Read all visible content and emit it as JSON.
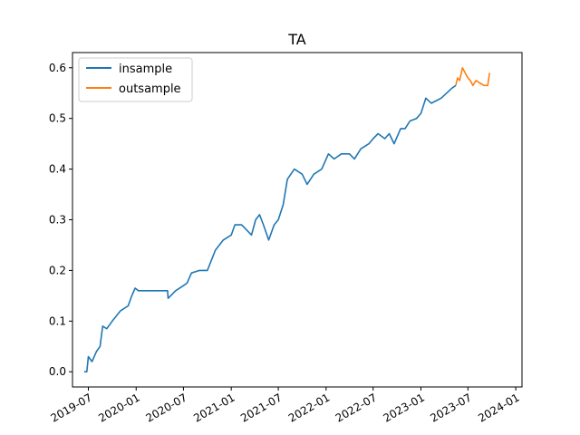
{
  "chart_data": {
    "type": "line",
    "title": "TA",
    "xlabel": "",
    "ylabel": "",
    "xlim": [
      "2019-05-01",
      "2024-01-25"
    ],
    "ylim": [
      -0.03,
      0.63
    ],
    "x_ticks": [
      "2019-07",
      "2020-01",
      "2020-07",
      "2021-01",
      "2021-07",
      "2022-01",
      "2022-07",
      "2023-01",
      "2023-07",
      "2024-01"
    ],
    "y_ticks": [
      "0.0",
      "0.1",
      "0.2",
      "0.3",
      "0.4",
      "0.5",
      "0.6"
    ],
    "grid": false,
    "legend": {
      "position": "top-left",
      "entries": [
        "insample",
        "outsample"
      ]
    },
    "colors": {
      "insample": "#1f77b4",
      "outsample": "#ff7f0e"
    },
    "series": [
      {
        "name": "insample",
        "points": [
          [
            "2019-06-15",
            0.0
          ],
          [
            "2019-06-25",
            0.0
          ],
          [
            "2019-07-01",
            0.03
          ],
          [
            "2019-07-15",
            0.02
          ],
          [
            "2019-08-01",
            0.04
          ],
          [
            "2019-08-15",
            0.05
          ],
          [
            "2019-08-25",
            0.09
          ],
          [
            "2019-09-10",
            0.085
          ],
          [
            "2019-10-01",
            0.1
          ],
          [
            "2019-11-01",
            0.12
          ],
          [
            "2019-12-01",
            0.13
          ],
          [
            "2019-12-15",
            0.15
          ],
          [
            "2019-12-28",
            0.165
          ],
          [
            "2020-01-10",
            0.16
          ],
          [
            "2020-03-01",
            0.16
          ],
          [
            "2020-05-01",
            0.16
          ],
          [
            "2020-05-03",
            0.145
          ],
          [
            "2020-06-01",
            0.16
          ],
          [
            "2020-07-01",
            0.17
          ],
          [
            "2020-07-15",
            0.175
          ],
          [
            "2020-08-01",
            0.195
          ],
          [
            "2020-09-01",
            0.2
          ],
          [
            "2020-10-01",
            0.2
          ],
          [
            "2020-11-01",
            0.24
          ],
          [
            "2020-12-01",
            0.26
          ],
          [
            "2021-01-01",
            0.27
          ],
          [
            "2021-01-15",
            0.29
          ],
          [
            "2021-02-10",
            0.29
          ],
          [
            "2021-03-01",
            0.28
          ],
          [
            "2021-03-20",
            0.27
          ],
          [
            "2021-04-05",
            0.3
          ],
          [
            "2021-04-20",
            0.31
          ],
          [
            "2021-05-05",
            0.29
          ],
          [
            "2021-05-25",
            0.26
          ],
          [
            "2021-06-15",
            0.29
          ],
          [
            "2021-07-01",
            0.3
          ],
          [
            "2021-07-20",
            0.33
          ],
          [
            "2021-08-05",
            0.38
          ],
          [
            "2021-09-01",
            0.4
          ],
          [
            "2021-10-01",
            0.39
          ],
          [
            "2021-10-20",
            0.37
          ],
          [
            "2021-11-15",
            0.39
          ],
          [
            "2021-12-15",
            0.4
          ],
          [
            "2022-01-10",
            0.43
          ],
          [
            "2022-02-01",
            0.42
          ],
          [
            "2022-03-01",
            0.43
          ],
          [
            "2022-04-01",
            0.43
          ],
          [
            "2022-04-20",
            0.42
          ],
          [
            "2022-05-15",
            0.44
          ],
          [
            "2022-06-15",
            0.45
          ],
          [
            "2022-07-01",
            0.46
          ],
          [
            "2022-07-20",
            0.47
          ],
          [
            "2022-08-15",
            0.46
          ],
          [
            "2022-09-01",
            0.47
          ],
          [
            "2022-09-20",
            0.45
          ],
          [
            "2022-10-15",
            0.48
          ],
          [
            "2022-11-01",
            0.48
          ],
          [
            "2022-11-20",
            0.495
          ],
          [
            "2022-12-15",
            0.5
          ],
          [
            "2023-01-01",
            0.51
          ],
          [
            "2023-01-20",
            0.54
          ],
          [
            "2023-02-10",
            0.53
          ],
          [
            "2023-03-01",
            0.535
          ],
          [
            "2023-03-20",
            0.54
          ],
          [
            "2023-04-10",
            0.55
          ],
          [
            "2023-05-01",
            0.56
          ],
          [
            "2023-05-15",
            0.565
          ]
        ]
      },
      {
        "name": "outsample",
        "points": [
          [
            "2023-05-15",
            0.565
          ],
          [
            "2023-05-22",
            0.58
          ],
          [
            "2023-05-30",
            0.575
          ],
          [
            "2023-06-10",
            0.6
          ],
          [
            "2023-06-20",
            0.59
          ],
          [
            "2023-07-01",
            0.58
          ],
          [
            "2023-07-10",
            0.575
          ],
          [
            "2023-07-20",
            0.565
          ],
          [
            "2023-08-01",
            0.575
          ],
          [
            "2023-08-15",
            0.57
          ],
          [
            "2023-09-01",
            0.565
          ],
          [
            "2023-09-15",
            0.565
          ],
          [
            "2023-09-22",
            0.59
          ]
        ]
      }
    ]
  }
}
